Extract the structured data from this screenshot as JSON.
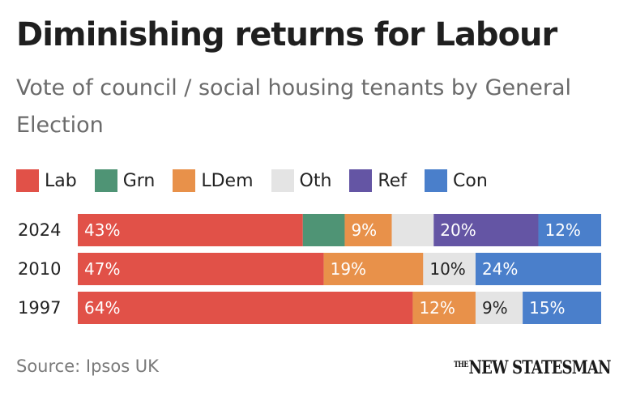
{
  "colors": {
    "Lab": "#e15148",
    "Grn": "#4f9475",
    "LDem": "#e8914a",
    "Oth": "#e4e4e4",
    "Ref": "#6455a4",
    "Con": "#4a7fcb"
  },
  "footer": {
    "source": "Source: Ipsos UK",
    "logo": "NEW STATESMAN",
    "logo_prefix": "THE"
  },
  "chart_data": {
    "type": "bar",
    "orientation": "horizontal",
    "stacked": true,
    "title": "Diminishing returns for Labour",
    "subtitle": "Vote of council / social housing tenants by General Election",
    "legend_position": "top-left",
    "xlim": [
      0,
      100
    ],
    "legend": [
      "Lab",
      "Grn",
      "LDem",
      "Oth",
      "Ref",
      "Con"
    ],
    "categories": [
      "2024",
      "2010",
      "1997"
    ],
    "series": [
      {
        "name": "Lab",
        "values": [
          43,
          47,
          64
        ],
        "labels": [
          "43%",
          "47%",
          "64%"
        ]
      },
      {
        "name": "Grn",
        "values": [
          8,
          0,
          0
        ],
        "labels": [
          "",
          "",
          ""
        ]
      },
      {
        "name": "LDem",
        "values": [
          9,
          19,
          12
        ],
        "labels": [
          "9%",
          "19%",
          "12%"
        ]
      },
      {
        "name": "Oth",
        "values": [
          8,
          10,
          9
        ],
        "labels": [
          "",
          "10%",
          "9%"
        ]
      },
      {
        "name": "Ref",
        "values": [
          20,
          0,
          0
        ],
        "labels": [
          "20%",
          "",
          ""
        ]
      },
      {
        "name": "Con",
        "values": [
          12,
          24,
          15
        ],
        "labels": [
          "12%",
          "24%",
          "15%"
        ]
      }
    ]
  }
}
